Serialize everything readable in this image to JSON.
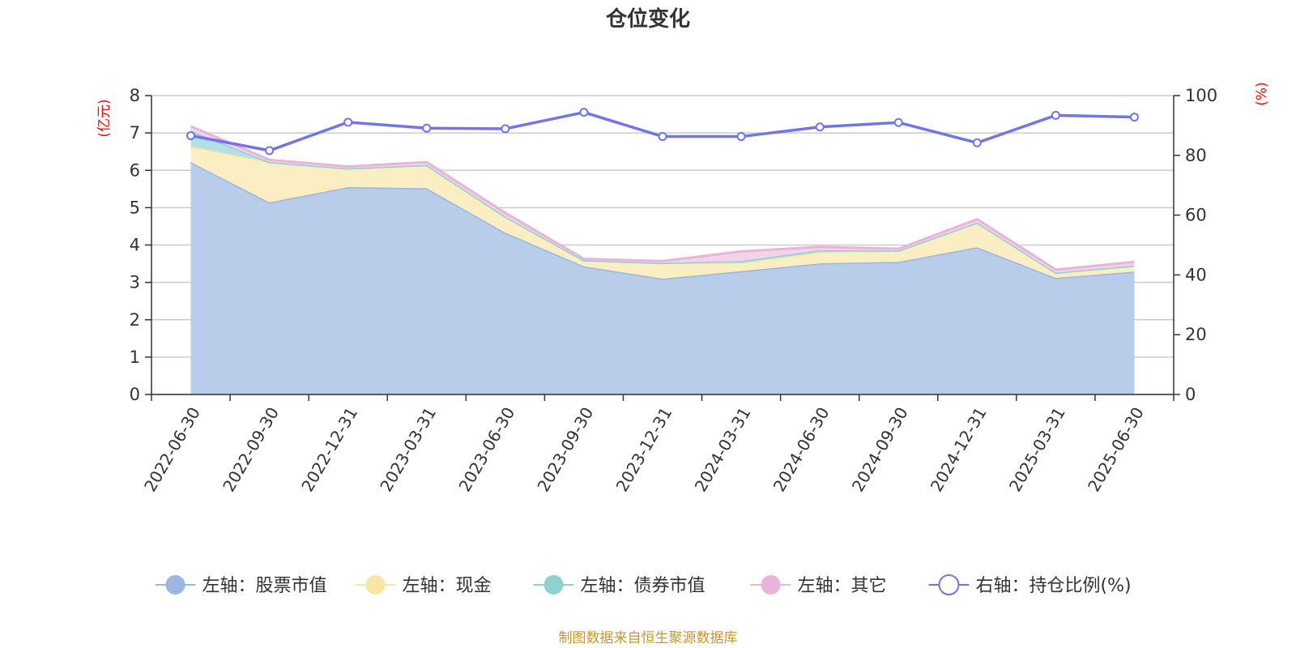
{
  "chart_data": {
    "type": "area",
    "title": "仓位变化",
    "y_left_unit": "(亿元)",
    "y_right_unit": "(%)",
    "y_left_range": [
      0,
      8
    ],
    "y_left_ticks": [
      "0",
      "1",
      "2",
      "3",
      "4",
      "5",
      "6",
      "7",
      "8"
    ],
    "y_right_range": [
      0,
      100
    ],
    "y_right_ticks": [
      "0",
      "20",
      "40",
      "60",
      "80",
      "100"
    ],
    "grid": true,
    "legend_position": "bottom",
    "source_note": "制图数据来自恒生聚源数据库",
    "categories": [
      "2022-06-30",
      "2022-09-30",
      "2022-12-31",
      "2023-03-31",
      "2023-06-30",
      "2023-09-30",
      "2023-12-31",
      "2024-03-31",
      "2024-06-30",
      "2024-09-30",
      "2024-12-31",
      "2025-03-31",
      "2025-06-30"
    ],
    "series": [
      {
        "name": "左轴：股票市值",
        "axis": "left",
        "kind": "area",
        "color": "#9bb6e0",
        "fill": "#b8cdea",
        "values": [
          6.22,
          5.14,
          5.55,
          5.52,
          4.33,
          3.43,
          3.1,
          3.3,
          3.51,
          3.55,
          3.94,
          3.12,
          3.29
        ]
      },
      {
        "name": "左轴：现金",
        "axis": "left",
        "kind": "area",
        "color": "#f8e6a4",
        "fill": "#fbeec3",
        "values": [
          0.42,
          1.08,
          0.5,
          0.62,
          0.43,
          0.16,
          0.42,
          0.22,
          0.3,
          0.3,
          0.66,
          0.14,
          0.16
        ]
      },
      {
        "name": "左轴：债券市值",
        "axis": "left",
        "kind": "area",
        "color": "#8fd0d0",
        "fill": "#b3e1e1",
        "values": [
          0.42,
          0,
          0,
          0,
          0,
          0,
          0,
          0.05,
          0.05,
          0,
          0,
          0,
          0
        ]
      },
      {
        "name": "左轴：其它",
        "axis": "left",
        "kind": "area",
        "color": "#e8b4da",
        "fill": "#f3d3ea",
        "values": [
          0.12,
          0.06,
          0.05,
          0.08,
          0.1,
          0.04,
          0.05,
          0.26,
          0.09,
          0.05,
          0.09,
          0.08,
          0.1
        ]
      },
      {
        "name": "右轴：持仓比例(%)",
        "axis": "right",
        "kind": "line",
        "color": "#7373ea",
        "values": [
          86.6,
          81.6,
          91.1,
          89.1,
          88.9,
          94.4,
          86.3,
          86.3,
          89.5,
          91.0,
          84.2,
          93.4,
          92.8
        ]
      }
    ]
  }
}
